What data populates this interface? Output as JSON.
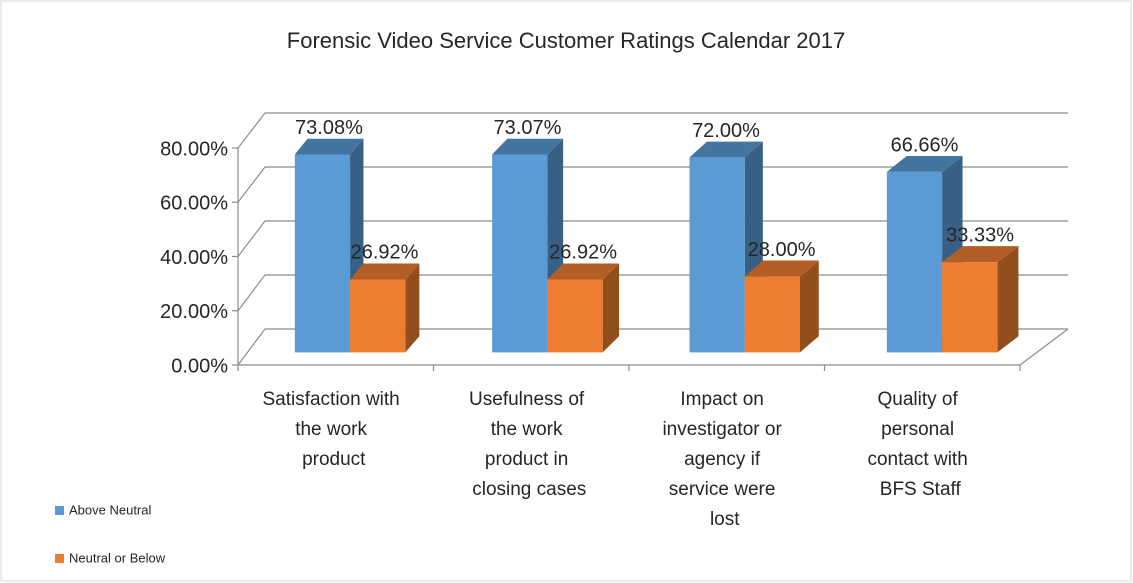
{
  "chart_data": {
    "type": "bar3d",
    "title": "Forensic Video Service Customer Ratings Calendar 2017",
    "categories": [
      "Satisfaction with the work product",
      "Usefulness of the work product in closing cases",
      "Impact on investigator or agency if service were lost",
      "Quality of personal contact with BFS Staff"
    ],
    "series": [
      {
        "name": "Above Neutral",
        "color": "#5b9bd5",
        "values": [
          73.08,
          73.07,
          72.0,
          66.66
        ],
        "value_labels": [
          "73.08%",
          "73.07%",
          "72.00%",
          "66.66%"
        ]
      },
      {
        "name": "Neutral or Below",
        "color": "#ed7d31",
        "values": [
          26.92,
          26.92,
          28.0,
          33.33
        ],
        "value_labels": [
          "26.92%",
          "26.92%",
          "28.00%",
          "33.33%"
        ]
      }
    ],
    "ylim": [
      0,
      80
    ],
    "yticks": [
      {
        "value": 0,
        "label": "0.00%"
      },
      {
        "value": 20,
        "label": "20.00%"
      },
      {
        "value": 40,
        "label": "40.00%"
      },
      {
        "value": 60,
        "label": "60.00%"
      },
      {
        "value": 80,
        "label": "80.00%"
      }
    ],
    "grid": true,
    "legend": "bottom-left"
  }
}
